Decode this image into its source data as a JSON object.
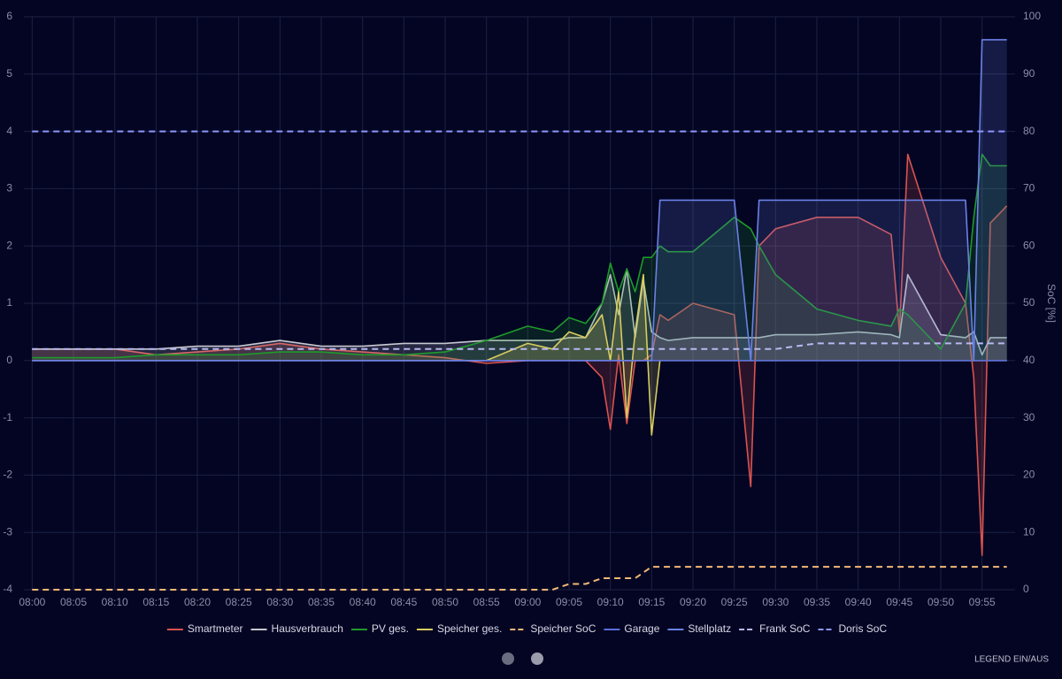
{
  "chart_data": {
    "type": "line",
    "x": [
      "08:00",
      "08:05",
      "08:10",
      "08:15",
      "08:20",
      "08:25",
      "08:30",
      "08:35",
      "08:40",
      "08:45",
      "08:50",
      "08:55",
      "09:00",
      "09:03",
      "09:05",
      "09:07",
      "09:09",
      "09:10",
      "09:11",
      "09:12",
      "09:13",
      "09:14",
      "09:15",
      "09:16",
      "09:17",
      "09:20",
      "09:25",
      "09:27",
      "09:28",
      "09:30",
      "09:35",
      "09:40",
      "09:44",
      "09:45",
      "09:46",
      "09:50",
      "09:53",
      "09:54",
      "09:55",
      "09:56",
      "09:58"
    ],
    "xlim": [
      "07:59",
      "09:59"
    ],
    "xticks": [
      "08:00",
      "08:05",
      "08:10",
      "08:15",
      "08:20",
      "08:25",
      "08:30",
      "08:35",
      "08:40",
      "08:45",
      "08:50",
      "08:55",
      "09:00",
      "09:05",
      "09:10",
      "09:15",
      "09:20",
      "09:25",
      "09:30",
      "09:35",
      "09:40",
      "09:45",
      "09:50",
      "09:55"
    ],
    "ylim": [
      -4,
      6
    ],
    "yticks": [
      -4,
      -3,
      -2,
      -1,
      0,
      1,
      2,
      3,
      4,
      5,
      6
    ],
    "y2lim": [
      0,
      100
    ],
    "y2ticks": [
      0,
      10,
      20,
      30,
      40,
      50,
      60,
      70,
      80,
      90,
      100
    ],
    "y2label": "SoC [%]",
    "grid": true,
    "series": [
      {
        "name": "Smartmeter",
        "color": "#d9534f",
        "fill": true,
        "dash": false,
        "values": [
          0.2,
          0.2,
          0.2,
          0.1,
          0.15,
          0.2,
          0.3,
          0.2,
          0.15,
          0.1,
          0.05,
          -0.05,
          0,
          0,
          0,
          0,
          -0.3,
          -1.2,
          0.1,
          -1.1,
          0,
          0,
          0.1,
          0.8,
          0.7,
          1.0,
          0.8,
          -2.2,
          2.0,
          2.3,
          2.5,
          2.5,
          2.2,
          0.5,
          3.6,
          1.8,
          1.0,
          -0.3,
          -3.4,
          2.4,
          2.7
        ]
      },
      {
        "name": "Hausverbrauch",
        "color": "#c8c8d0",
        "fill": true,
        "dash": false,
        "values": [
          0.2,
          0.2,
          0.2,
          0.2,
          0.25,
          0.25,
          0.35,
          0.25,
          0.25,
          0.3,
          0.3,
          0.35,
          0.35,
          0.35,
          0.4,
          0.4,
          1.0,
          1.5,
          0.8,
          1.6,
          0.4,
          1.4,
          0.5,
          0.4,
          0.35,
          0.4,
          0.4,
          0.4,
          0.4,
          0.45,
          0.45,
          0.5,
          0.45,
          0.4,
          1.5,
          0.45,
          0.4,
          0.5,
          0.1,
          0.4,
          0.4
        ]
      },
      {
        "name": "PV ges.",
        "color": "#1f9a2a",
        "fill": true,
        "dash": false,
        "values": [
          0.05,
          0.05,
          0.05,
          0.1,
          0.1,
          0.1,
          0.15,
          0.15,
          0.1,
          0.1,
          0.15,
          0.35,
          0.6,
          0.5,
          0.75,
          0.65,
          1.0,
          1.7,
          1.2,
          1.6,
          1.2,
          1.8,
          1.8,
          2.0,
          1.9,
          1.9,
          2.5,
          2.3,
          2.0,
          1.5,
          0.9,
          0.7,
          0.6,
          0.9,
          0.8,
          0.2,
          1.0,
          2.5,
          3.6,
          3.4,
          3.4
        ]
      },
      {
        "name": "Speicher ges.",
        "color": "#d8cc60",
        "fill": true,
        "dash": false,
        "values": [
          0,
          0,
          0,
          0,
          0,
          0,
          0,
          0,
          0,
          0,
          0,
          0,
          0.3,
          0.2,
          0.5,
          0.4,
          0.8,
          0,
          1.2,
          -1.0,
          0.5,
          1.5,
          -1.3,
          0,
          0,
          0,
          0,
          0,
          0,
          0,
          0,
          0,
          0,
          0,
          0,
          0,
          0,
          0,
          0,
          0,
          0
        ]
      },
      {
        "name": "Speicher SoC",
        "color": "#f2b876",
        "fill": false,
        "dash": true,
        "axis": "y2",
        "values": [
          0,
          0,
          0,
          0,
          0,
          0,
          0,
          0,
          0,
          0,
          0,
          0,
          0,
          0,
          1,
          1,
          2,
          2,
          2,
          2,
          2,
          3,
          4,
          4,
          4,
          4,
          4,
          4,
          4,
          4,
          4,
          4,
          4,
          4,
          4,
          4,
          4,
          4,
          4,
          4,
          4
        ]
      },
      {
        "name": "Garage",
        "color": "#5a6ed8",
        "fill": true,
        "dash": false,
        "values": [
          0,
          0,
          0,
          0,
          0,
          0,
          0,
          0,
          0,
          0,
          0,
          0,
          0,
          0,
          0,
          0,
          0,
          0,
          0,
          0,
          0,
          0,
          0,
          0,
          0,
          0,
          0,
          0,
          0,
          0,
          0,
          0,
          0,
          0,
          0,
          0,
          0,
          0,
          0,
          0,
          0
        ]
      },
      {
        "name": "Stellplatz",
        "color": "#6b80e6",
        "fill": true,
        "dash": false,
        "values": [
          0,
          0,
          0,
          0,
          0,
          0,
          0,
          0,
          0,
          0,
          0,
          0,
          0,
          0,
          0,
          0,
          0,
          0,
          0,
          0,
          0,
          0,
          0,
          2.8,
          2.8,
          2.8,
          2.8,
          0,
          2.8,
          2.8,
          2.8,
          2.8,
          2.8,
          2.8,
          2.8,
          2.8,
          2.8,
          0,
          5.6,
          5.6,
          5.6
        ]
      },
      {
        "name": "Frank SoC",
        "color": "#b8b8f0",
        "fill": false,
        "dash": true,
        "axis": "y2",
        "values": [
          42,
          42,
          42,
          42,
          42,
          42,
          42,
          42,
          42,
          42,
          42,
          42,
          42,
          42,
          42,
          42,
          42,
          42,
          42,
          42,
          42,
          42,
          42,
          42,
          42,
          42,
          42,
          42,
          42,
          42,
          43,
          43,
          43,
          43,
          43,
          43,
          43,
          43,
          43,
          43,
          43
        ]
      },
      {
        "name": "Doris SoC",
        "color": "#8f96ff",
        "fill": false,
        "dash": true,
        "axis": "y2",
        "values": [
          80,
          80,
          80,
          80,
          80,
          80,
          80,
          80,
          80,
          80,
          80,
          80,
          80,
          80,
          80,
          80,
          80,
          80,
          80,
          80,
          80,
          80,
          80,
          80,
          80,
          80,
          80,
          80,
          80,
          80,
          80,
          80,
          80,
          80,
          80,
          80,
          80,
          80,
          80,
          80,
          80
        ]
      }
    ]
  },
  "controls": {
    "legend_toggle": "LEGEND EIN/AUS"
  }
}
